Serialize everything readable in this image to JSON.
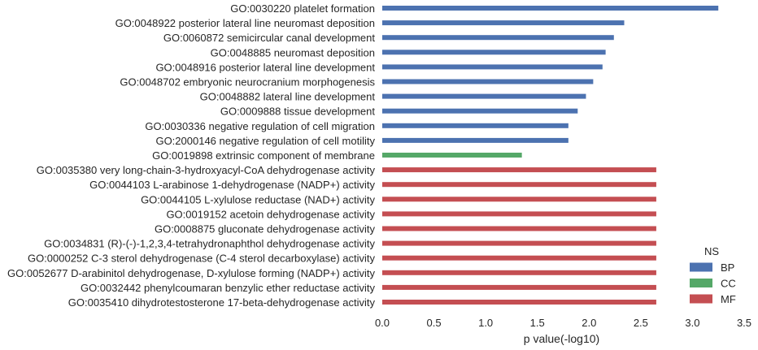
{
  "chart_data": {
    "type": "bar",
    "orientation": "horizontal",
    "xlabel": "p value(-log10)",
    "xlim": [
      0,
      3.5
    ],
    "xticks": [
      "0.0",
      "0.5",
      "1.0",
      "1.5",
      "2.0",
      "2.5",
      "3.0",
      "3.5"
    ],
    "grid": false,
    "legend": {
      "title": "NS",
      "placement": "bottom-right",
      "entries": [
        {
          "name": "BP",
          "color": "#4c72b0"
        },
        {
          "name": "CC",
          "color": "#55a868"
        },
        {
          "name": "MF",
          "color": "#c44e52"
        }
      ]
    },
    "categories": [
      "GO:0030220 platelet formation",
      "GO:0048922 posterior lateral line neuromast deposition",
      "GO:0060872 semicircular canal development",
      "GO:0048885 neuromast deposition",
      "GO:0048916 posterior lateral line development",
      "GO:0048702 embryonic neurocranium morphogenesis",
      "GO:0048882 lateral line development",
      "GO:0009888 tissue development",
      "GO:0030336 negative regulation of cell migration",
      "GO:2000146 negative regulation of cell motility",
      "GO:0019898 extrinsic component of membrane",
      "GO:0035380 very long-chain-3-hydroxyacyl-CoA dehydrogenase activity",
      "GO:0044103 L-arabinose 1-dehydrogenase (NADP+) activity",
      "GO:0044105 L-xylulose reductase (NAD+) activity",
      "GO:0019152 acetoin dehydrogenase activity",
      "GO:0008875 gluconate dehydrogenase activity",
      "GO:0034831 (R)-(-)-1,2,3,4-tetrahydronaphthol dehydrogenase activity",
      "GO:0000252 C-3 sterol dehydrogenase (C-4 sterol decarboxylase) activity",
      "GO:0052677 D-arabinitol dehydrogenase, D-xylulose forming (NADP+) activity",
      "GO:0032442 phenylcoumaran benzylic ether reductase activity",
      "GO:0035410 dihydrotestosterone 17-beta-dehydrogenase activity"
    ],
    "values": [
      3.25,
      2.34,
      2.24,
      2.16,
      2.13,
      2.04,
      1.97,
      1.89,
      1.8,
      1.8,
      1.35,
      2.65,
      2.65,
      2.65,
      2.65,
      2.65,
      2.65,
      2.65,
      2.65,
      2.65,
      2.65
    ],
    "ns": [
      "BP",
      "BP",
      "BP",
      "BP",
      "BP",
      "BP",
      "BP",
      "BP",
      "BP",
      "BP",
      "CC",
      "MF",
      "MF",
      "MF",
      "MF",
      "MF",
      "MF",
      "MF",
      "MF",
      "MF",
      "MF"
    ]
  }
}
